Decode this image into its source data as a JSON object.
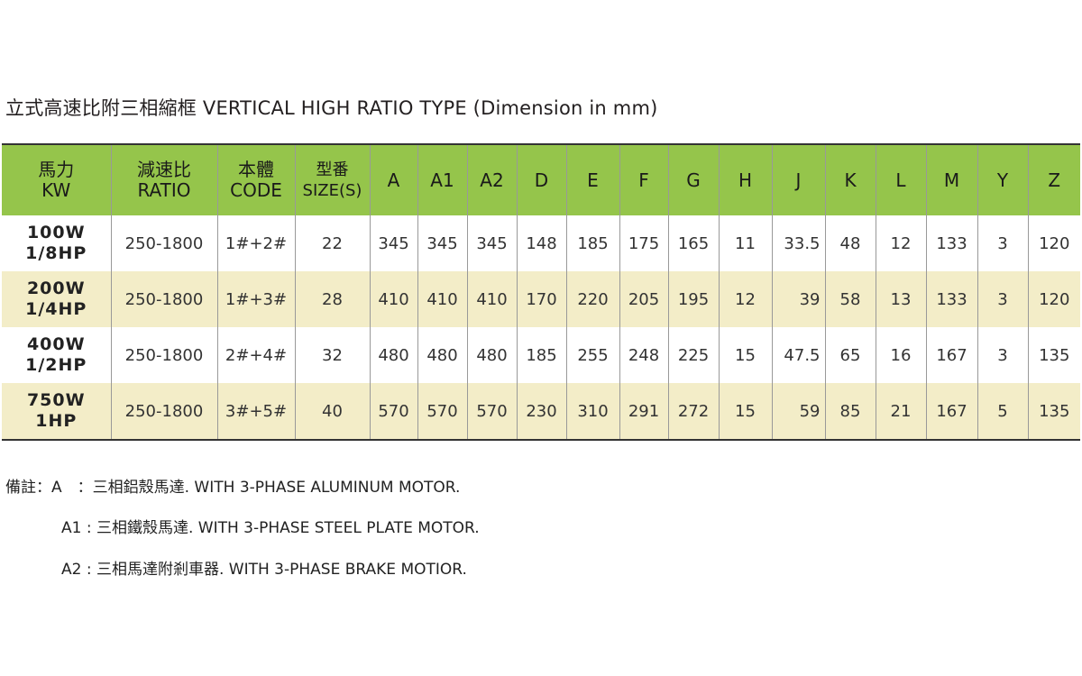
{
  "title": "立式高速比附三相縮框 VERTICAL HIGH RATIO TYPE (Dimension in mm)",
  "table": {
    "headers": [
      {
        "line1": "馬力",
        "line2": "KW"
      },
      {
        "line1": "減速比",
        "line2": "RATIO"
      },
      {
        "line1": "本體",
        "line2": "CODE"
      },
      {
        "line1": "型番",
        "line2": "SIZE(S)"
      },
      {
        "line1": "A"
      },
      {
        "line1": "A1"
      },
      {
        "line1": "A2"
      },
      {
        "line1": "D"
      },
      {
        "line1": "E"
      },
      {
        "line1": "F"
      },
      {
        "line1": "G"
      },
      {
        "line1": "H"
      },
      {
        "line1": "J"
      },
      {
        "line1": "K"
      },
      {
        "line1": "L"
      },
      {
        "line1": "M"
      },
      {
        "line1": "Y"
      },
      {
        "line1": "Z"
      }
    ],
    "rows": [
      {
        "kw1": "100W",
        "kw2": "1/8HP",
        "cells": [
          "250-1800",
          "1#+2#",
          "22",
          "345",
          "345",
          "345",
          "148",
          "185",
          "175",
          "165",
          "11",
          "33.5",
          "48",
          "12",
          "133",
          "3",
          "120"
        ]
      },
      {
        "kw1": "200W",
        "kw2": "1/4HP",
        "cells": [
          "250-1800",
          "1#+3#",
          "28",
          "410",
          "410",
          "410",
          "170",
          "220",
          "205",
          "195",
          "12",
          "39",
          "58",
          "13",
          "133",
          "3",
          "120"
        ]
      },
      {
        "kw1": "400W",
        "kw2": "1/2HP",
        "cells": [
          "250-1800",
          "2#+4#",
          "32",
          "480",
          "480",
          "480",
          "185",
          "255",
          "248",
          "225",
          "15",
          "47.5",
          "65",
          "16",
          "167",
          "3",
          "135"
        ]
      },
      {
        "kw1": "750W",
        "kw2": "1HP",
        "cells": [
          "250-1800",
          "3#+5#",
          "40",
          "570",
          "570",
          "570",
          "230",
          "310",
          "291",
          "272",
          "15",
          "59",
          "85",
          "21",
          "167",
          "5",
          "135"
        ]
      }
    ]
  },
  "notes": [
    "備註：A　：三相鋁殼馬達. WITH 3-PHASE ALUMINUM MOTOR.",
    "A1 : 三相鐵殼馬達. WITH 3-PHASE STEEL PLATE MOTOR.",
    "A2 : 三相馬達附剎車器. WITH 3-PHASE BRAKE MOTIOR."
  ],
  "colors": {
    "header": "#95c54b",
    "alt_row": "#f3edc8"
  }
}
